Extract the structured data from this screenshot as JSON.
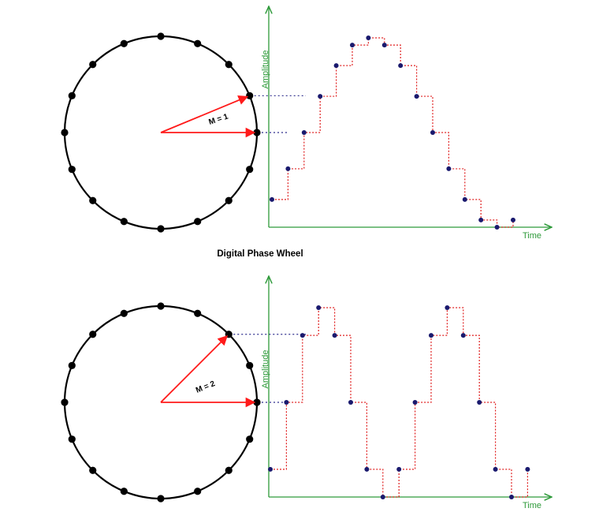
{
  "title": "Digital Phase Wheel",
  "colors": {
    "axis": "#2e9a3a",
    "arrow": "#ff1a1a",
    "dot": "#000000",
    "sample": "#1a1a6e",
    "staircase": "#e02020",
    "guide": "#2c2c8c"
  },
  "panels": [
    {
      "id": "top",
      "m_label": "M = 1",
      "y_axis_label": "Amplitude",
      "x_axis_label": "Time",
      "wheel_points": 16,
      "increment": 1,
      "start_index": 0,
      "sample_count": 16,
      "trailing_samples": 0
    },
    {
      "id": "bottom",
      "m_label": "M = 2",
      "y_axis_label": "Amplitude",
      "x_axis_label": "Time",
      "wheel_points": 16,
      "increment": 2,
      "start_index": 0,
      "sample_count": 16,
      "trailing_samples": 1
    }
  ]
}
